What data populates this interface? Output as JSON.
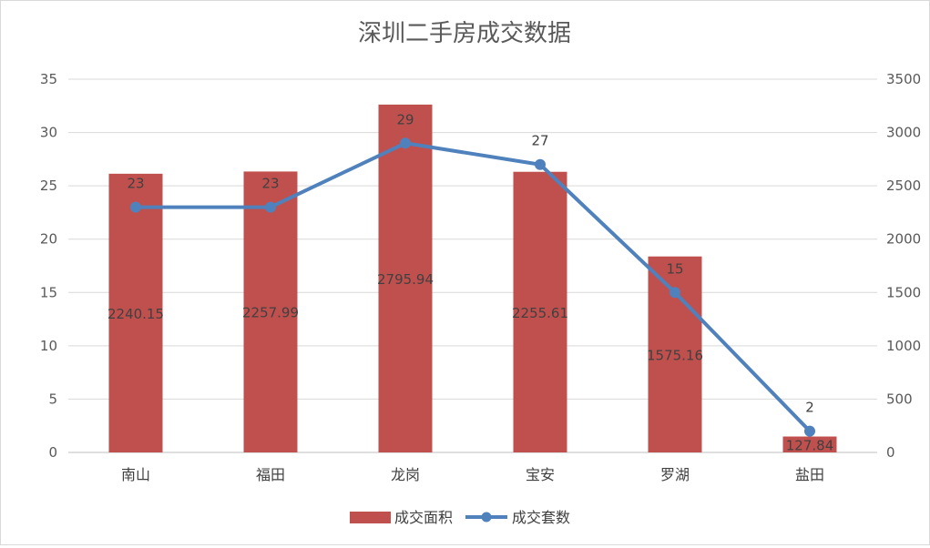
{
  "chart_data": {
    "type": "bar",
    "title": "深圳二手房成交数据",
    "categories": [
      "南山",
      "福田",
      "龙岗",
      "宝安",
      "罗湖",
      "盐田"
    ],
    "series": [
      {
        "name": "成交面积",
        "type": "bar",
        "axis": "right",
        "color": "#c0504d",
        "values": [
          2240.15,
          2257.99,
          2795.94,
          2255.61,
          1575.16,
          127.84
        ]
      },
      {
        "name": "成交套数",
        "type": "line",
        "axis": "left",
        "color": "#4f81bd",
        "values": [
          23,
          23,
          29,
          27,
          15,
          2
        ]
      }
    ],
    "y_left": {
      "min": 0,
      "max": 35,
      "step": 5
    },
    "y_right": {
      "min": 0,
      "max": 3000,
      "step": 500
    },
    "grid": true,
    "legend_position": "bottom"
  }
}
